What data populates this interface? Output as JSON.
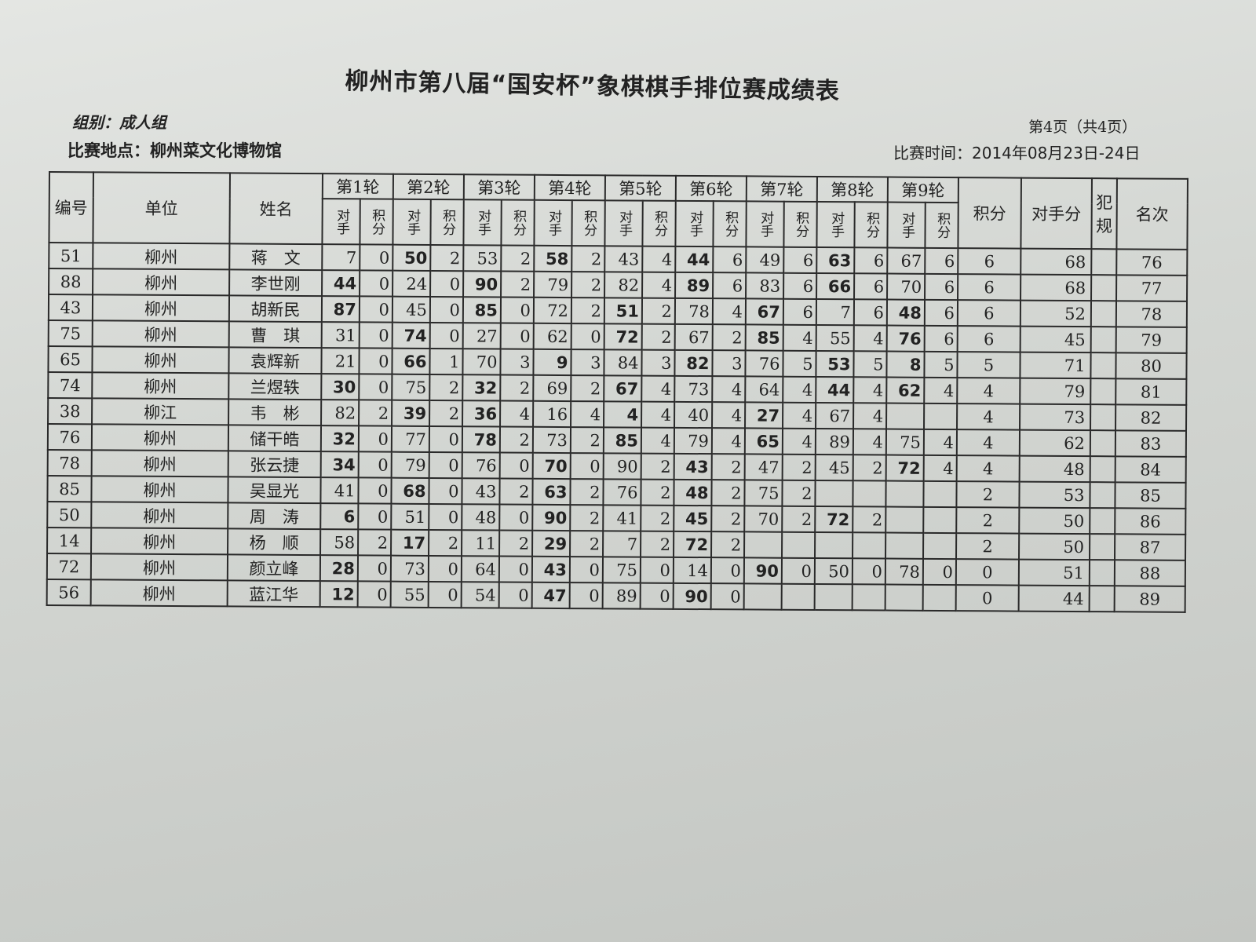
{
  "header": {
    "title": "柳州市第八届“国安杯”象棋棋手排位赛成绩表",
    "group": "组别：成人组",
    "venue": "比赛地点：柳州菜文化博物馆",
    "page": "第4页（共4页）",
    "time": "比赛时间：2014年08月23日-24日"
  },
  "columns": {
    "no": "编号",
    "unit": "单位",
    "name": "姓名",
    "rounds": [
      "第1轮",
      "第2轮",
      "第3轮",
      "第4轮",
      "第5轮",
      "第6轮",
      "第7轮",
      "第8轮",
      "第9轮"
    ],
    "opp": "对手",
    "pts": "积分",
    "total": "积分",
    "opp_score": "对手分",
    "foul": "犯规",
    "rank": "名次"
  },
  "rows": [
    {
      "no": "51",
      "unit": "柳州",
      "name": "蒋　文",
      "rounds": [
        [
          "7",
          "0",
          0
        ],
        [
          "50",
          "2",
          1
        ],
        [
          "53",
          "2",
          0
        ],
        [
          "58",
          "2",
          1
        ],
        [
          "43",
          "4",
          0
        ],
        [
          "44",
          "6",
          1
        ],
        [
          "49",
          "6",
          0
        ],
        [
          "63",
          "6",
          1
        ],
        [
          "67",
          "6",
          0
        ]
      ],
      "total": "6",
      "opp_score": "68",
      "foul": "",
      "rank": "76"
    },
    {
      "no": "88",
      "unit": "柳州",
      "name": "李世刚",
      "rounds": [
        [
          "44",
          "0",
          1
        ],
        [
          "24",
          "0",
          0
        ],
        [
          "90",
          "2",
          1
        ],
        [
          "79",
          "2",
          0
        ],
        [
          "82",
          "4",
          0
        ],
        [
          "89",
          "6",
          1
        ],
        [
          "83",
          "6",
          0
        ],
        [
          "66",
          "6",
          1
        ],
        [
          "70",
          "6",
          0
        ]
      ],
      "total": "6",
      "opp_score": "68",
      "foul": "",
      "rank": "77"
    },
    {
      "no": "43",
      "unit": "柳州",
      "name": "胡新民",
      "rounds": [
        [
          "87",
          "0",
          1
        ],
        [
          "45",
          "0",
          0
        ],
        [
          "85",
          "0",
          1
        ],
        [
          "72",
          "2",
          0
        ],
        [
          "51",
          "2",
          1
        ],
        [
          "78",
          "4",
          0
        ],
        [
          "67",
          "6",
          1
        ],
        [
          "7",
          "6",
          0
        ],
        [
          "48",
          "6",
          1
        ]
      ],
      "total": "6",
      "opp_score": "52",
      "foul": "",
      "rank": "78"
    },
    {
      "no": "75",
      "unit": "柳州",
      "name": "曹　琪",
      "rounds": [
        [
          "31",
          "0",
          0
        ],
        [
          "74",
          "0",
          1
        ],
        [
          "27",
          "0",
          0
        ],
        [
          "62",
          "0",
          0
        ],
        [
          "72",
          "2",
          1
        ],
        [
          "67",
          "2",
          0
        ],
        [
          "85",
          "4",
          1
        ],
        [
          "55",
          "4",
          0
        ],
        [
          "76",
          "6",
          1
        ]
      ],
      "total": "6",
      "opp_score": "45",
      "foul": "",
      "rank": "79"
    },
    {
      "no": "65",
      "unit": "柳州",
      "name": "袁辉新",
      "rounds": [
        [
          "21",
          "0",
          0
        ],
        [
          "66",
          "1",
          1
        ],
        [
          "70",
          "3",
          0
        ],
        [
          "9",
          "3",
          1
        ],
        [
          "84",
          "3",
          0
        ],
        [
          "82",
          "3",
          1
        ],
        [
          "76",
          "5",
          0
        ],
        [
          "53",
          "5",
          1
        ],
        [
          "8",
          "5",
          1
        ]
      ],
      "total": "5",
      "opp_score": "71",
      "foul": "",
      "rank": "80"
    },
    {
      "no": "74",
      "unit": "柳州",
      "name": "兰煜轶",
      "rounds": [
        [
          "30",
          "0",
          1
        ],
        [
          "75",
          "2",
          0
        ],
        [
          "32",
          "2",
          1
        ],
        [
          "69",
          "2",
          0
        ],
        [
          "67",
          "4",
          1
        ],
        [
          "73",
          "4",
          0
        ],
        [
          "64",
          "4",
          0
        ],
        [
          "44",
          "4",
          1
        ],
        [
          "62",
          "4",
          1
        ]
      ],
      "total": "4",
      "opp_score": "79",
      "foul": "",
      "rank": "81"
    },
    {
      "no": "38",
      "unit": "柳江",
      "name": "韦　彬",
      "rounds": [
        [
          "82",
          "2",
          0
        ],
        [
          "39",
          "2",
          1
        ],
        [
          "36",
          "4",
          1
        ],
        [
          "16",
          "4",
          0
        ],
        [
          "4",
          "4",
          1
        ],
        [
          "40",
          "4",
          0
        ],
        [
          "27",
          "4",
          1
        ],
        [
          "67",
          "4",
          0
        ],
        [
          "",
          "",
          0
        ]
      ],
      "total": "4",
      "opp_score": "73",
      "foul": "",
      "rank": "82"
    },
    {
      "no": "76",
      "unit": "柳州",
      "name": "储干皓",
      "rounds": [
        [
          "32",
          "0",
          1
        ],
        [
          "77",
          "0",
          0
        ],
        [
          "78",
          "2",
          1
        ],
        [
          "73",
          "2",
          0
        ],
        [
          "85",
          "4",
          1
        ],
        [
          "79",
          "4",
          0
        ],
        [
          "65",
          "4",
          1
        ],
        [
          "89",
          "4",
          0
        ],
        [
          "75",
          "4",
          0
        ]
      ],
      "total": "4",
      "opp_score": "62",
      "foul": "",
      "rank": "83"
    },
    {
      "no": "78",
      "unit": "柳州",
      "name": "张云捷",
      "rounds": [
        [
          "34",
          "0",
          1
        ],
        [
          "79",
          "0",
          0
        ],
        [
          "76",
          "0",
          0
        ],
        [
          "70",
          "0",
          1
        ],
        [
          "90",
          "2",
          0
        ],
        [
          "43",
          "2",
          1
        ],
        [
          "47",
          "2",
          0
        ],
        [
          "45",
          "2",
          0
        ],
        [
          "72",
          "4",
          1
        ]
      ],
      "total": "4",
      "opp_score": "48",
      "foul": "",
      "rank": "84"
    },
    {
      "no": "85",
      "unit": "柳州",
      "name": "吴显光",
      "rounds": [
        [
          "41",
          "0",
          0
        ],
        [
          "68",
          "0",
          1
        ],
        [
          "43",
          "2",
          0
        ],
        [
          "63",
          "2",
          1
        ],
        [
          "76",
          "2",
          0
        ],
        [
          "48",
          "2",
          1
        ],
        [
          "75",
          "2",
          0
        ],
        [
          "",
          "",
          0
        ],
        [
          "",
          "",
          0
        ]
      ],
      "total": "2",
      "opp_score": "53",
      "foul": "",
      "rank": "85"
    },
    {
      "no": "50",
      "unit": "柳州",
      "name": "周　涛",
      "rounds": [
        [
          "6",
          "0",
          1
        ],
        [
          "51",
          "0",
          0
        ],
        [
          "48",
          "0",
          0
        ],
        [
          "90",
          "2",
          1
        ],
        [
          "41",
          "2",
          0
        ],
        [
          "45",
          "2",
          1
        ],
        [
          "70",
          "2",
          0
        ],
        [
          "72",
          "2",
          1
        ],
        [
          "",
          "",
          0
        ]
      ],
      "total": "2",
      "opp_score": "50",
      "foul": "",
      "rank": "86"
    },
    {
      "no": "14",
      "unit": "柳州",
      "name": "杨　顺",
      "rounds": [
        [
          "58",
          "2",
          0
        ],
        [
          "17",
          "2",
          1
        ],
        [
          "11",
          "2",
          0
        ],
        [
          "29",
          "2",
          1
        ],
        [
          "7",
          "2",
          0
        ],
        [
          "72",
          "2",
          1
        ],
        [
          "",
          "",
          0
        ],
        [
          "",
          "",
          0
        ],
        [
          "",
          "",
          0
        ]
      ],
      "total": "2",
      "opp_score": "50",
      "foul": "",
      "rank": "87"
    },
    {
      "no": "72",
      "unit": "柳州",
      "name": "颜立峰",
      "rounds": [
        [
          "28",
          "0",
          1
        ],
        [
          "73",
          "0",
          0
        ],
        [
          "64",
          "0",
          0
        ],
        [
          "43",
          "0",
          1
        ],
        [
          "75",
          "0",
          0
        ],
        [
          "14",
          "0",
          0
        ],
        [
          "90",
          "0",
          1
        ],
        [
          "50",
          "0",
          0
        ],
        [
          "78",
          "0",
          0
        ]
      ],
      "total": "0",
      "opp_score": "51",
      "foul": "",
      "rank": "88"
    },
    {
      "no": "56",
      "unit": "柳州",
      "name": "蓝江华",
      "rounds": [
        [
          "12",
          "0",
          1
        ],
        [
          "55",
          "0",
          0
        ],
        [
          "54",
          "0",
          0
        ],
        [
          "47",
          "0",
          1
        ],
        [
          "89",
          "0",
          0
        ],
        [
          "90",
          "0",
          1
        ],
        [
          "",
          "",
          0
        ],
        [
          "",
          "",
          0
        ],
        [
          "",
          "",
          0
        ]
      ],
      "total": "0",
      "opp_score": "44",
      "foul": "",
      "rank": "89"
    }
  ]
}
